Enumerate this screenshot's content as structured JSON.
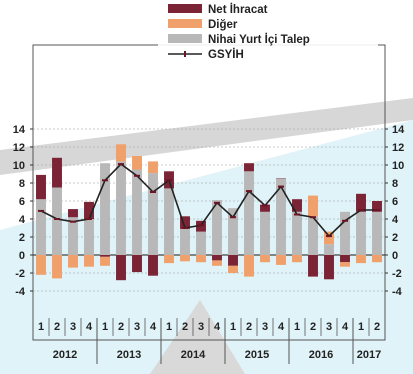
{
  "chart_data": {
    "type": "bar",
    "title": "",
    "xlabel": "",
    "ylabel": "",
    "ylim": [
      -5,
      15
    ],
    "yticks": [
      -4,
      -2,
      0,
      2,
      4,
      6,
      8,
      10,
      12,
      14
    ],
    "legend_position": "top-center",
    "grid": true,
    "years": [
      {
        "label": "2012",
        "quarters": [
          "1",
          "2",
          "3",
          "4"
        ]
      },
      {
        "label": "2013",
        "quarters": [
          "1",
          "2",
          "3",
          "4"
        ]
      },
      {
        "label": "2014",
        "quarters": [
          "1",
          "2",
          "3",
          "4"
        ]
      },
      {
        "label": "2015",
        "quarters": [
          "1",
          "2",
          "3",
          "4"
        ]
      },
      {
        "label": "2016",
        "quarters": [
          "1",
          "2",
          "3",
          "4"
        ]
      },
      {
        "label": "2017",
        "quarters": [
          "1",
          "2"
        ]
      }
    ],
    "series": [
      {
        "name": "Net İhracat",
        "color": "#7a2436",
        "values": [
          2.7,
          3.3,
          0.9,
          1.9,
          -0.2,
          -2.8,
          -1.9,
          -2.3,
          1.9,
          1.4,
          1.2,
          -0.6,
          -1.2,
          0.9,
          0.8,
          0.0,
          1.4,
          -2.4,
          -2.7,
          -0.8,
          2.0,
          1.2
        ]
      },
      {
        "name": "Diğer",
        "color": "#f0a06a",
        "values": [
          -2.2,
          -2.6,
          -1.4,
          -1.3,
          -1.0,
          1.9,
          1.5,
          1.3,
          -0.9,
          -0.7,
          -0.8,
          -0.6,
          -0.8,
          -2.4,
          -0.8,
          -1.1,
          -0.8,
          2.3,
          1.4,
          -0.5,
          -0.9,
          -0.8
        ]
      },
      {
        "name": "Nihai Yurt İçi Talep",
        "color": "#b8b8b8",
        "values": [
          6.2,
          7.5,
          4.2,
          4.0,
          10.2,
          10.4,
          9.5,
          9.1,
          7.4,
          2.9,
          2.6,
          6.1,
          5.2,
          9.3,
          4.8,
          8.5,
          4.8,
          4.3,
          1.2,
          4.8,
          4.8,
          4.8
        ]
      },
      {
        "name": "GSYİH",
        "color": "#6b1424",
        "values": [
          4.9,
          4.0,
          3.7,
          4.0,
          8.3,
          10.1,
          8.8,
          7.0,
          8.3,
          3.0,
          3.3,
          5.8,
          4.2,
          7.1,
          5.5,
          7.6,
          4.5,
          4.2,
          2.1,
          3.8,
          5.0,
          5.0
        ]
      }
    ]
  }
}
